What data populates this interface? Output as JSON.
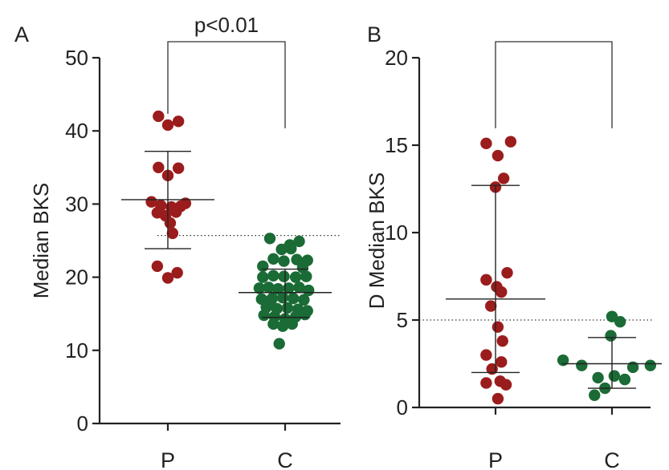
{
  "colors": {
    "P": "#9b1c1c",
    "C": "#1a6b35",
    "axis": "#222222",
    "errorbar": "#222222"
  },
  "chart_data": [
    {
      "panel_label": "A",
      "type": "scatter",
      "ylabel": "Median BKS",
      "categories": [
        "P",
        "C"
      ],
      "ylim": [
        0,
        50
      ],
      "yticks": [
        0,
        10,
        20,
        30,
        40,
        50
      ],
      "grid": false,
      "threshold": 25.7,
      "significance": "p<0.01",
      "series": [
        {
          "category": "P",
          "color": "#9b1c1c",
          "mean": 30.6,
          "sd_upper": 37.2,
          "sd_lower": 23.9,
          "points": [
            {
              "o": -0.08,
              "y": 42.0
            },
            {
              "o": 0.0,
              "y": 40.8
            },
            {
              "o": 0.09,
              "y": 41.3
            },
            {
              "o": -0.08,
              "y": 35.0
            },
            {
              "o": 0.09,
              "y": 34.9
            },
            {
              "o": 0.0,
              "y": 33.9
            },
            {
              "o": -0.14,
              "y": 30.3
            },
            {
              "o": -0.06,
              "y": 29.8
            },
            {
              "o": 0.03,
              "y": 29.6
            },
            {
              "o": 0.11,
              "y": 29.7
            },
            {
              "o": 0.15,
              "y": 30.1
            },
            {
              "o": -0.09,
              "y": 28.8
            },
            {
              "o": -0.02,
              "y": 28.4
            },
            {
              "o": 0.07,
              "y": 28.9
            },
            {
              "o": 0.02,
              "y": 27.4
            },
            {
              "o": 0.04,
              "y": 26.0
            },
            {
              "o": -0.09,
              "y": 21.5
            },
            {
              "o": 0.0,
              "y": 19.9
            },
            {
              "o": 0.08,
              "y": 20.6
            }
          ]
        },
        {
          "category": "C",
          "color": "#1a6b35",
          "mean": 17.9,
          "sd_upper": 21.1,
          "sd_lower": 14.5,
          "points": [
            {
              "o": -0.13,
              "y": 25.3
            },
            {
              "o": 0.12,
              "y": 24.9
            },
            {
              "o": -0.03,
              "y": 23.8
            },
            {
              "o": 0.05,
              "y": 23.9
            },
            {
              "o": -0.1,
              "y": 22.5
            },
            {
              "o": -0.01,
              "y": 22.2
            },
            {
              "o": 0.1,
              "y": 22.4
            },
            {
              "o": 0.19,
              "y": 22.3
            },
            {
              "o": -0.19,
              "y": 21.5
            },
            {
              "o": -0.19,
              "y": 20.0
            },
            {
              "o": -0.1,
              "y": 20.2
            },
            {
              "o": -0.01,
              "y": 20.1
            },
            {
              "o": 0.09,
              "y": 20.0
            },
            {
              "o": 0.18,
              "y": 20.1
            },
            {
              "o": -0.22,
              "y": 18.5
            },
            {
              "o": -0.14,
              "y": 18.6
            },
            {
              "o": -0.06,
              "y": 18.4
            },
            {
              "o": 0.03,
              "y": 18.5
            },
            {
              "o": 0.12,
              "y": 18.6
            },
            {
              "o": 0.2,
              "y": 18.2
            },
            {
              "o": -0.2,
              "y": 17.0
            },
            {
              "o": -0.11,
              "y": 17.1
            },
            {
              "o": -0.02,
              "y": 17.2
            },
            {
              "o": 0.07,
              "y": 17.1
            },
            {
              "o": 0.16,
              "y": 16.9
            },
            {
              "o": -0.16,
              "y": 15.9
            },
            {
              "o": -0.07,
              "y": 15.7
            },
            {
              "o": 0.02,
              "y": 15.8
            },
            {
              "o": 0.11,
              "y": 15.6
            },
            {
              "o": 0.19,
              "y": 15.4
            },
            {
              "o": -0.18,
              "y": 14.8
            },
            {
              "o": -0.09,
              "y": 14.6
            },
            {
              "o": 0.0,
              "y": 14.3
            },
            {
              "o": 0.09,
              "y": 14.6
            },
            {
              "o": 0.17,
              "y": 14.9
            },
            {
              "o": -0.1,
              "y": 13.6
            },
            {
              "o": -0.02,
              "y": 13.3
            },
            {
              "o": 0.06,
              "y": 13.6
            },
            {
              "o": -0.05,
              "y": 10.9
            },
            {
              "o": 0.04,
              "y": 24.4
            },
            {
              "o": -0.13,
              "y": 16.4
            },
            {
              "o": 0.15,
              "y": 21.3
            }
          ]
        }
      ]
    },
    {
      "panel_label": "B",
      "type": "scatter",
      "ylabel": "D Median BKS",
      "categories": [
        "P",
        "C"
      ],
      "ylim": [
        0,
        20
      ],
      "yticks": [
        0,
        5,
        10,
        15,
        20
      ],
      "grid": false,
      "threshold": 5.0,
      "significance": "",
      "series": [
        {
          "category": "P",
          "color": "#9b1c1c",
          "mean": 6.2,
          "sd_upper": 12.7,
          "sd_lower": 2.0,
          "points": [
            {
              "o": -0.08,
              "y": 15.1
            },
            {
              "o": 0.13,
              "y": 15.2
            },
            {
              "o": 0.02,
              "y": 14.4
            },
            {
              "o": 0.07,
              "y": 13.1
            },
            {
              "o": 0.0,
              "y": 12.6
            },
            {
              "o": -0.08,
              "y": 7.3
            },
            {
              "o": 0.1,
              "y": 7.7
            },
            {
              "o": 0.01,
              "y": 6.9
            },
            {
              "o": 0.05,
              "y": 6.6
            },
            {
              "o": -0.04,
              "y": 5.8
            },
            {
              "o": 0.02,
              "y": 4.6
            },
            {
              "o": 0.06,
              "y": 3.8
            },
            {
              "o": -0.08,
              "y": 3.0
            },
            {
              "o": 0.05,
              "y": 2.6
            },
            {
              "o": -0.03,
              "y": 2.2
            },
            {
              "o": -0.08,
              "y": 1.4
            },
            {
              "o": 0.09,
              "y": 1.3
            },
            {
              "o": 0.04,
              "y": 1.5
            },
            {
              "o": 0.02,
              "y": 0.5
            }
          ]
        },
        {
          "category": "C",
          "color": "#1a6b35",
          "mean": 2.5,
          "sd_upper": 4.0,
          "sd_lower": 1.1,
          "points": [
            {
              "o": 0.0,
              "y": 5.2
            },
            {
              "o": 0.07,
              "y": 4.9
            },
            {
              "o": -0.01,
              "y": 4.1
            },
            {
              "o": -0.42,
              "y": 2.7
            },
            {
              "o": -0.26,
              "y": 2.4
            },
            {
              "o": 0.18,
              "y": 2.3
            },
            {
              "o": 0.33,
              "y": 2.4
            },
            {
              "o": -0.12,
              "y": 1.7
            },
            {
              "o": 0.02,
              "y": 1.8
            },
            {
              "o": 0.11,
              "y": 1.6
            },
            {
              "o": -0.06,
              "y": 1.1
            },
            {
              "o": -0.15,
              "y": 0.7
            }
          ]
        }
      ]
    }
  ]
}
